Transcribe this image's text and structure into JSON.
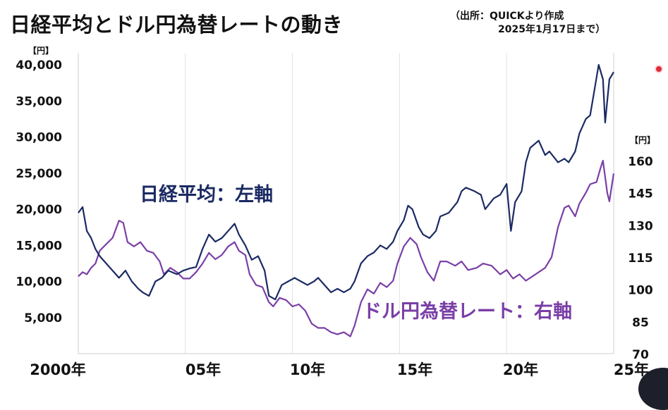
{
  "title": "日経平均とドル円為替レートの動き",
  "source_line1": "（出所：QUICKより作成",
  "source_line2": "2025年1月17日まで）",
  "chart_data": {
    "type": "line",
    "title": "日経平均とドル円為替レートの動き",
    "left_axis": {
      "unit": "【円】",
      "range": [
        0,
        42000
      ],
      "ticks": [
        "5,000",
        "10,000",
        "15,000",
        "20,000",
        "25,000",
        "30,000",
        "35,000",
        "40,000"
      ],
      "tick_values": [
        5000,
        10000,
        15000,
        20000,
        25000,
        30000,
        35000,
        40000
      ]
    },
    "right_axis": {
      "unit": "【円】",
      "range": [
        70,
        162
      ],
      "ticks": [
        "70",
        "85",
        "100",
        "115",
        "130",
        "145",
        "160"
      ],
      "tick_values": [
        70,
        85,
        100,
        115,
        130,
        145,
        160
      ]
    },
    "x_axis": {
      "range": [
        2000,
        2025
      ],
      "tick_labels": [
        "2000年",
        "05年",
        "10年",
        "15年",
        "20年",
        "25年"
      ],
      "tick_values": [
        2000,
        2005,
        2010,
        2015,
        2020,
        2025
      ]
    },
    "grid": true,
    "colors": {
      "nikkei": "#1b2a63",
      "usdjpy": "#7a3fa6"
    },
    "series": [
      {
        "name": "日経平均：左軸",
        "axis": "left",
        "x": [
          2000.0,
          2000.2,
          2000.4,
          2000.6,
          2000.8,
          2001.0,
          2001.3,
          2001.6,
          2001.9,
          2002.2,
          2002.5,
          2002.8,
          2003.0,
          2003.3,
          2003.6,
          2003.9,
          2004.2,
          2004.6,
          2004.9,
          2005.2,
          2005.5,
          2005.8,
          2006.1,
          2006.4,
          2006.7,
          2007.0,
          2007.3,
          2007.5,
          2007.8,
          2008.1,
          2008.4,
          2008.7,
          2008.9,
          2009.2,
          2009.5,
          2009.8,
          2010.1,
          2010.4,
          2010.7,
          2011.0,
          2011.2,
          2011.5,
          2011.8,
          2012.1,
          2012.4,
          2012.7,
          2012.9,
          2013.2,
          2013.5,
          2013.8,
          2014.1,
          2014.4,
          2014.7,
          2014.9,
          2015.2,
          2015.4,
          2015.6,
          2015.9,
          2016.1,
          2016.4,
          2016.7,
          2016.9,
          2017.3,
          2017.7,
          2017.9,
          2018.1,
          2018.5,
          2018.8,
          2019.0,
          2019.4,
          2019.7,
          2020.0,
          2020.2,
          2020.4,
          2020.7,
          2020.9,
          2021.1,
          2021.5,
          2021.8,
          2022.0,
          2022.4,
          2022.7,
          2022.9,
          2023.2,
          2023.4,
          2023.7,
          2023.9,
          2024.1,
          2024.3,
          2024.5,
          2024.6,
          2024.8,
          2025.0
        ],
        "y": [
          19500,
          20300,
          17000,
          16000,
          14500,
          13500,
          12500,
          11500,
          10500,
          11500,
          10000,
          9000,
          8500,
          8000,
          10000,
          10500,
          11500,
          11000,
          11500,
          11800,
          12000,
          14500,
          16500,
          15500,
          16000,
          17000,
          18000,
          16500,
          15000,
          13000,
          13500,
          11500,
          8000,
          7500,
          9500,
          10000,
          10500,
          10000,
          9500,
          10000,
          10500,
          9500,
          8500,
          9000,
          8500,
          9000,
          10000,
          12500,
          13500,
          14000,
          15000,
          14500,
          15500,
          17000,
          18500,
          20500,
          20000,
          17500,
          16500,
          16000,
          17000,
          19000,
          19500,
          21000,
          22500,
          23000,
          22500,
          22000,
          20000,
          21500,
          22000,
          23500,
          17000,
          21000,
          22500,
          26500,
          28500,
          29500,
          27500,
          28000,
          26500,
          27000,
          26500,
          28000,
          30500,
          32500,
          33000,
          36500,
          40000,
          38000,
          32000,
          38000,
          39000
        ]
      },
      {
        "name": "ドル円為替レート：右軸",
        "axis": "right",
        "x": [
          2000.0,
          2000.2,
          2000.4,
          2000.6,
          2000.8,
          2001.0,
          2001.3,
          2001.6,
          2001.9,
          2002.1,
          2002.3,
          2002.6,
          2002.9,
          2003.2,
          2003.5,
          2003.8,
          2004.0,
          2004.3,
          2004.6,
          2004.9,
          2005.2,
          2005.5,
          2005.8,
          2006.1,
          2006.4,
          2006.7,
          2007.0,
          2007.3,
          2007.5,
          2007.8,
          2008.0,
          2008.3,
          2008.6,
          2008.9,
          2009.1,
          2009.4,
          2009.7,
          2010.0,
          2010.3,
          2010.6,
          2010.9,
          2011.2,
          2011.5,
          2011.8,
          2012.1,
          2012.4,
          2012.7,
          2012.9,
          2013.2,
          2013.5,
          2013.8,
          2014.1,
          2014.4,
          2014.7,
          2014.9,
          2015.2,
          2015.5,
          2015.8,
          2016.0,
          2016.3,
          2016.6,
          2016.9,
          2017.2,
          2017.6,
          2017.9,
          2018.2,
          2018.6,
          2018.9,
          2019.3,
          2019.7,
          2020.0,
          2020.3,
          2020.6,
          2020.9,
          2021.2,
          2021.5,
          2021.8,
          2022.1,
          2022.4,
          2022.7,
          2022.9,
          2023.2,
          2023.4,
          2023.7,
          2023.9,
          2024.2,
          2024.4,
          2024.5,
          2024.7,
          2024.8,
          2025.0
        ],
        "y": [
          106,
          108,
          107,
          110,
          112,
          118,
          121,
          124,
          132,
          131,
          122,
          120,
          122,
          118,
          117,
          113,
          107,
          110,
          108,
          105,
          105,
          108,
          112,
          117,
          114,
          116,
          120,
          122,
          118,
          116,
          107,
          102,
          101,
          94,
          92,
          96,
          95,
          92,
          93,
          90,
          84,
          82,
          82,
          80,
          79,
          80,
          78,
          83,
          94,
          100,
          98,
          103,
          101,
          104,
          112,
          120,
          124,
          121,
          115,
          108,
          104,
          113,
          113,
          111,
          113,
          109,
          110,
          112,
          111,
          107,
          109,
          105,
          107,
          104,
          106,
          108,
          110,
          115,
          129,
          138,
          139,
          134,
          140,
          145,
          149,
          150,
          157,
          160,
          145,
          141,
          154
        ]
      }
    ],
    "annotations": [
      "日経平均：左軸",
      "ドル円為替レート：右軸"
    ]
  }
}
